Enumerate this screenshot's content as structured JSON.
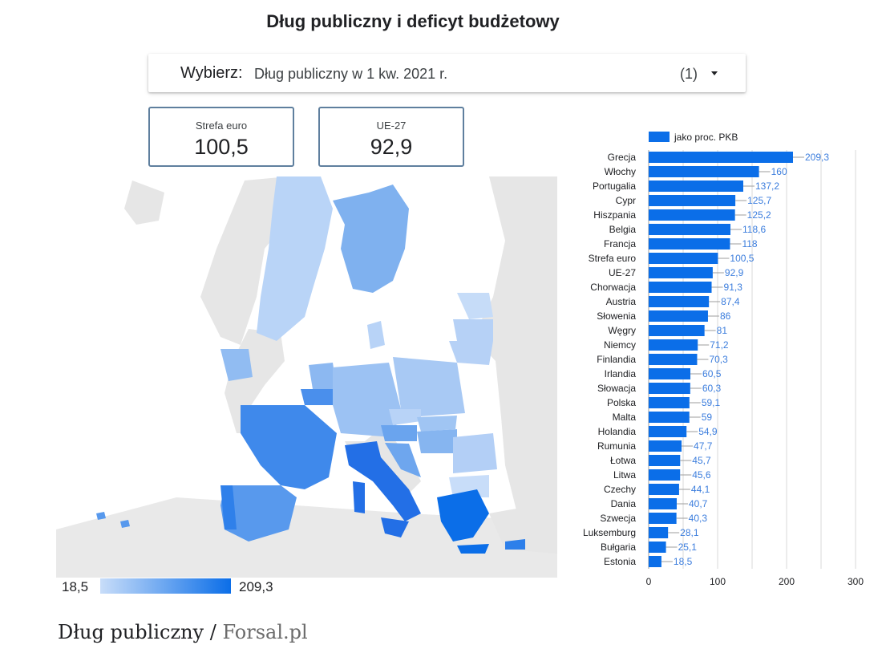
{
  "title": "Dług publiczny i deficyt budżetowy",
  "selector": {
    "label": "Wybierz:",
    "value": "Dług publiczny w 1 kw. 2021 r.",
    "count": "(1)",
    "icon": "chevron-down-icon"
  },
  "kpis": [
    {
      "label": "Strefa euro",
      "value": "100,5"
    },
    {
      "label": "UE-27",
      "value": "92,9"
    }
  ],
  "map_scale": {
    "min": "18,5",
    "max": "209,3",
    "color_min": "#c8ddf9",
    "color_max": "#0b6ee8"
  },
  "chart_data": {
    "type": "bar",
    "orientation": "horizontal",
    "legend": {
      "label": "jako proc. PKB",
      "position": "top"
    },
    "categories": [
      "Grecja",
      "Włochy",
      "Portugalia",
      "Cypr",
      "Hiszpania",
      "Belgia",
      "Francja",
      "Strefa euro",
      "UE-27",
      "Chorwacja",
      "Austria",
      "Słowenia",
      "Węgry",
      "Niemcy",
      "Finlandia",
      "Irlandia",
      "Słowacja",
      "Polska",
      "Malta",
      "Holandia",
      "Rumunia",
      "Łotwa",
      "Litwa",
      "Czechy",
      "Dania",
      "Szwecja",
      "Luksemburg",
      "Bułgaria",
      "Estonia"
    ],
    "values": [
      209.3,
      160,
      137.2,
      125.7,
      125.2,
      118.6,
      118,
      100.5,
      92.9,
      91.3,
      87.4,
      86,
      81,
      71.2,
      70.3,
      60.5,
      60.3,
      59.1,
      59,
      54.9,
      47.7,
      45.7,
      45.6,
      44.1,
      40.7,
      40.3,
      28.1,
      25.1,
      18.5
    ],
    "labels": [
      "209,3",
      "160",
      "137,2",
      "125,7",
      "125,2",
      "118,6",
      "118",
      "100,5",
      "92,9",
      "91,3",
      "87,4",
      "86",
      "81",
      "71,2",
      "70,3",
      "60,5",
      "60,3",
      "59,1",
      "59",
      "54,9",
      "47,7",
      "45,7",
      "45,6",
      "44,1",
      "40,7",
      "40,3",
      "28,1",
      "25,1",
      "18,5"
    ],
    "xlim": [
      0,
      300
    ],
    "xticks": [
      "0",
      "100",
      "200",
      "300"
    ],
    "grid": true,
    "bar_color": "#0b6ee8",
    "label_color": "#3b7ddd"
  },
  "caption": {
    "main": "Dług publiczny /",
    "source": "Forsal.pl"
  }
}
